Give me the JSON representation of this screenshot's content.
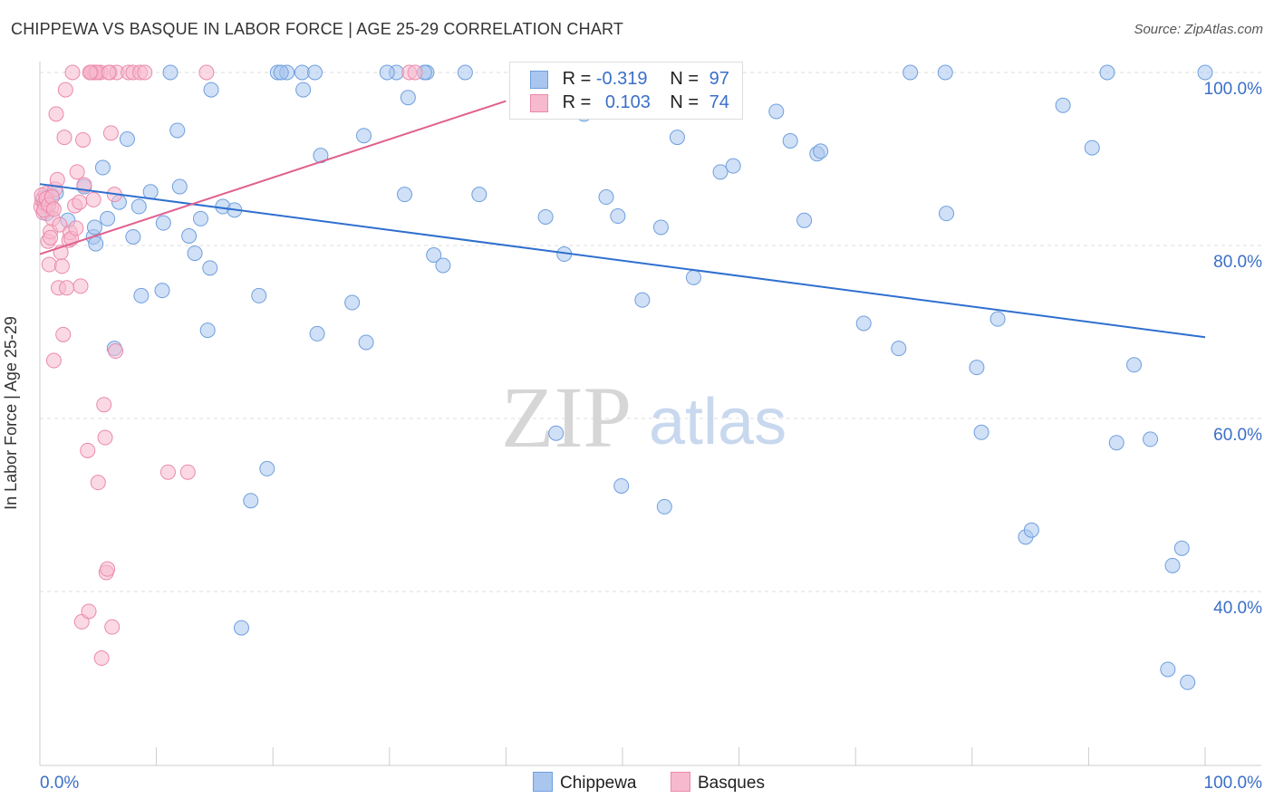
{
  "title": "CHIPPEWA VS BASQUE IN LABOR FORCE | AGE 25-29 CORRELATION CHART",
  "source": "Source: ZipAtlas.com",
  "watermark": {
    "zip": "ZIP",
    "atlas": "atlas"
  },
  "colors": {
    "chippewa_fill": "#a9c6ef",
    "chippewa_stroke": "#6f9fde",
    "chippewa_line": "#2f6fcf",
    "basques_fill": "#f7b9cd",
    "basques_stroke": "#ea8aab",
    "basques_line": "#e0608e",
    "tick_label": "#3a6fc8",
    "grid": "#dddddd"
  },
  "stats": {
    "chippewa": {
      "r_label": "R =",
      "r_value": "-0.319",
      "n_label": "N =",
      "n_value": "97"
    },
    "basques": {
      "r_label": "R =",
      "r_value": "0.103",
      "n_label": "N =",
      "n_value": "74"
    }
  },
  "legend": {
    "chippewa": "Chippewa",
    "basques": "Basques"
  },
  "chart_data": {
    "type": "scatter",
    "title": "CHIPPEWA VS BASQUE IN LABOR FORCE | AGE 25-29 CORRELATION CHART",
    "xlabel": "",
    "ylabel": "In Labor Force | Age 25-29",
    "xlim": [
      0,
      100
    ],
    "ylim": [
      21,
      102
    ],
    "x_tick_labels": [
      "0.0%",
      "100.0%"
    ],
    "y_ticks": [
      40,
      60,
      80,
      100
    ],
    "y_tick_labels": [
      "40.0%",
      "60.0%",
      "80.0%",
      "100.0%"
    ],
    "grid": true,
    "series": [
      {
        "name": "Chippewa",
        "trendline": {
          "x": [
            0,
            100
          ],
          "y": [
            87.1,
            69.4
          ]
        },
        "points": [
          {
            "x": 0.3,
            "y": 85.5
          },
          {
            "x": 0.5,
            "y": 84.5
          },
          {
            "x": 0.6,
            "y": 83.7
          },
          {
            "x": 1.0,
            "y": 85.8
          },
          {
            "x": 1.4,
            "y": 86.1
          },
          {
            "x": 2.4,
            "y": 82.9
          },
          {
            "x": 3.8,
            "y": 86.8
          },
          {
            "x": 4.6,
            "y": 81.0
          },
          {
            "x": 4.7,
            "y": 82.1
          },
          {
            "x": 4.8,
            "y": 80.2
          },
          {
            "x": 5.4,
            "y": 89.0
          },
          {
            "x": 5.8,
            "y": 83.1
          },
          {
            "x": 6.4,
            "y": 68.1
          },
          {
            "x": 6.8,
            "y": 85.0
          },
          {
            "x": 7.5,
            "y": 92.3
          },
          {
            "x": 8.0,
            "y": 81.0
          },
          {
            "x": 8.5,
            "y": 84.5
          },
          {
            "x": 8.7,
            "y": 74.2
          },
          {
            "x": 9.5,
            "y": 86.2
          },
          {
            "x": 10.5,
            "y": 74.8
          },
          {
            "x": 10.6,
            "y": 82.6
          },
          {
            "x": 11.2,
            "y": 100.0
          },
          {
            "x": 11.8,
            "y": 93.3
          },
          {
            "x": 12.0,
            "y": 86.8
          },
          {
            "x": 12.8,
            "y": 81.1
          },
          {
            "x": 13.3,
            "y": 79.1
          },
          {
            "x": 13.8,
            "y": 83.1
          },
          {
            "x": 14.4,
            "y": 70.2
          },
          {
            "x": 14.6,
            "y": 77.4
          },
          {
            "x": 14.7,
            "y": 98.0
          },
          {
            "x": 15.7,
            "y": 84.5
          },
          {
            "x": 16.7,
            "y": 84.1
          },
          {
            "x": 17.3,
            "y": 35.8
          },
          {
            "x": 18.1,
            "y": 50.5
          },
          {
            "x": 18.8,
            "y": 74.2
          },
          {
            "x": 19.5,
            "y": 54.2
          },
          {
            "x": 20.4,
            "y": 100.0
          },
          {
            "x": 21.2,
            "y": 100.0
          },
          {
            "x": 22.5,
            "y": 100.0
          },
          {
            "x": 22.6,
            "y": 98.0
          },
          {
            "x": 23.6,
            "y": 100.0
          },
          {
            "x": 23.8,
            "y": 69.8
          },
          {
            "x": 24.1,
            "y": 90.4
          },
          {
            "x": 26.8,
            "y": 73.4
          },
          {
            "x": 27.8,
            "y": 92.7
          },
          {
            "x": 28.0,
            "y": 68.8
          },
          {
            "x": 30.6,
            "y": 100.0
          },
          {
            "x": 31.3,
            "y": 85.9
          },
          {
            "x": 31.6,
            "y": 97.1
          },
          {
            "x": 33.2,
            "y": 100.0
          },
          {
            "x": 33.8,
            "y": 78.9
          },
          {
            "x": 34.6,
            "y": 77.7
          },
          {
            "x": 36.5,
            "y": 100.0
          },
          {
            "x": 37.7,
            "y": 85.9
          },
          {
            "x": 43.4,
            "y": 83.3
          },
          {
            "x": 44.3,
            "y": 58.3
          },
          {
            "x": 45.0,
            "y": 79.0
          },
          {
            "x": 46.7,
            "y": 95.2
          },
          {
            "x": 48.6,
            "y": 85.6
          },
          {
            "x": 49.6,
            "y": 83.4
          },
          {
            "x": 49.9,
            "y": 52.2
          },
          {
            "x": 51.7,
            "y": 73.7
          },
          {
            "x": 53.3,
            "y": 82.1
          },
          {
            "x": 53.6,
            "y": 49.8
          },
          {
            "x": 54.7,
            "y": 92.5
          },
          {
            "x": 56.1,
            "y": 76.3
          },
          {
            "x": 58.4,
            "y": 88.5
          },
          {
            "x": 59.5,
            "y": 89.2
          },
          {
            "x": 63.2,
            "y": 95.5
          },
          {
            "x": 64.4,
            "y": 92.1
          },
          {
            "x": 65.6,
            "y": 82.9
          },
          {
            "x": 66.7,
            "y": 90.6
          },
          {
            "x": 67.0,
            "y": 90.9
          },
          {
            "x": 70.7,
            "y": 71.0
          },
          {
            "x": 73.7,
            "y": 68.1
          },
          {
            "x": 74.7,
            "y": 100.0
          },
          {
            "x": 77.7,
            "y": 100.0
          },
          {
            "x": 77.8,
            "y": 83.7
          },
          {
            "x": 80.4,
            "y": 65.9
          },
          {
            "x": 80.8,
            "y": 58.4
          },
          {
            "x": 82.2,
            "y": 71.5
          },
          {
            "x": 84.6,
            "y": 46.3
          },
          {
            "x": 85.1,
            "y": 47.1
          },
          {
            "x": 87.8,
            "y": 96.2
          },
          {
            "x": 90.3,
            "y": 91.3
          },
          {
            "x": 91.6,
            "y": 100.0
          },
          {
            "x": 92.4,
            "y": 57.2
          },
          {
            "x": 93.9,
            "y": 66.2
          },
          {
            "x": 95.3,
            "y": 57.6
          },
          {
            "x": 97.2,
            "y": 43.0
          },
          {
            "x": 96.8,
            "y": 31.0
          },
          {
            "x": 98.5,
            "y": 29.5
          },
          {
            "x": 98.0,
            "y": 45.0
          },
          {
            "x": 100.0,
            "y": 100.0
          },
          {
            "x": 29.8,
            "y": 100.0
          },
          {
            "x": 33.0,
            "y": 100.0
          },
          {
            "x": 20.7,
            "y": 100.0
          }
        ]
      },
      {
        "name": "Basques",
        "trendline": {
          "x": [
            0,
            40.0
          ],
          "y": [
            79.0,
            96.7
          ]
        },
        "points": [
          {
            "x": 0.1,
            "y": 84.5
          },
          {
            "x": 0.2,
            "y": 85.2
          },
          {
            "x": 0.3,
            "y": 83.8
          },
          {
            "x": 0.4,
            "y": 84.9
          },
          {
            "x": 0.5,
            "y": 86.0
          },
          {
            "x": 0.6,
            "y": 85.0
          },
          {
            "x": 0.7,
            "y": 80.5
          },
          {
            "x": 0.8,
            "y": 77.8
          },
          {
            "x": 0.9,
            "y": 81.6
          },
          {
            "x": 1.0,
            "y": 84.4
          },
          {
            "x": 1.1,
            "y": 83.1
          },
          {
            "x": 1.2,
            "y": 66.7
          },
          {
            "x": 1.3,
            "y": 86.5
          },
          {
            "x": 1.4,
            "y": 95.2
          },
          {
            "x": 1.5,
            "y": 87.6
          },
          {
            "x": 1.6,
            "y": 75.1
          },
          {
            "x": 1.7,
            "y": 82.4
          },
          {
            "x": 1.8,
            "y": 79.2
          },
          {
            "x": 1.9,
            "y": 77.6
          },
          {
            "x": 2.0,
            "y": 69.7
          },
          {
            "x": 2.1,
            "y": 92.5
          },
          {
            "x": 2.2,
            "y": 98.0
          },
          {
            "x": 2.3,
            "y": 75.1
          },
          {
            "x": 2.5,
            "y": 80.6
          },
          {
            "x": 2.6,
            "y": 81.5
          },
          {
            "x": 2.8,
            "y": 100.0
          },
          {
            "x": 3.0,
            "y": 84.6
          },
          {
            "x": 3.2,
            "y": 88.5
          },
          {
            "x": 3.4,
            "y": 85.0
          },
          {
            "x": 3.5,
            "y": 75.3
          },
          {
            "x": 3.6,
            "y": 36.5
          },
          {
            "x": 3.7,
            "y": 92.2
          },
          {
            "x": 3.8,
            "y": 87.0
          },
          {
            "x": 4.1,
            "y": 56.3
          },
          {
            "x": 4.2,
            "y": 37.7
          },
          {
            "x": 4.5,
            "y": 100.0
          },
          {
            "x": 4.6,
            "y": 85.3
          },
          {
            "x": 4.7,
            "y": 100.0
          },
          {
            "x": 4.8,
            "y": 100.0
          },
          {
            "x": 5.0,
            "y": 52.6
          },
          {
            "x": 5.2,
            "y": 100.0
          },
          {
            "x": 5.3,
            "y": 32.3
          },
          {
            "x": 5.5,
            "y": 61.6
          },
          {
            "x": 5.6,
            "y": 57.8
          },
          {
            "x": 5.7,
            "y": 42.2
          },
          {
            "x": 5.8,
            "y": 42.6
          },
          {
            "x": 6.0,
            "y": 100.0
          },
          {
            "x": 6.1,
            "y": 93.0
          },
          {
            "x": 6.2,
            "y": 35.9
          },
          {
            "x": 6.4,
            "y": 85.9
          },
          {
            "x": 6.5,
            "y": 67.8
          },
          {
            "x": 6.6,
            "y": 100.0
          },
          {
            "x": 7.6,
            "y": 100.0
          },
          {
            "x": 8.0,
            "y": 100.0
          },
          {
            "x": 8.6,
            "y": 100.0
          },
          {
            "x": 9.0,
            "y": 100.0
          },
          {
            "x": 11.0,
            "y": 53.8
          },
          {
            "x": 12.7,
            "y": 53.8
          },
          {
            "x": 14.3,
            "y": 100.0
          },
          {
            "x": 31.7,
            "y": 100.0
          },
          {
            "x": 32.2,
            "y": 100.0
          },
          {
            "x": 0.15,
            "y": 85.8
          },
          {
            "x": 0.35,
            "y": 84.1
          },
          {
            "x": 0.55,
            "y": 85.4
          },
          {
            "x": 0.75,
            "y": 84.7
          },
          {
            "x": 1.05,
            "y": 85.6
          },
          {
            "x": 4.4,
            "y": 100.0
          },
          {
            "x": 4.9,
            "y": 100.0
          },
          {
            "x": 5.9,
            "y": 100.0
          },
          {
            "x": 2.7,
            "y": 80.8
          },
          {
            "x": 3.1,
            "y": 82.0
          },
          {
            "x": 0.9,
            "y": 80.9
          },
          {
            "x": 1.2,
            "y": 84.2
          },
          {
            "x": 4.3,
            "y": 100.0
          }
        ]
      }
    ]
  }
}
